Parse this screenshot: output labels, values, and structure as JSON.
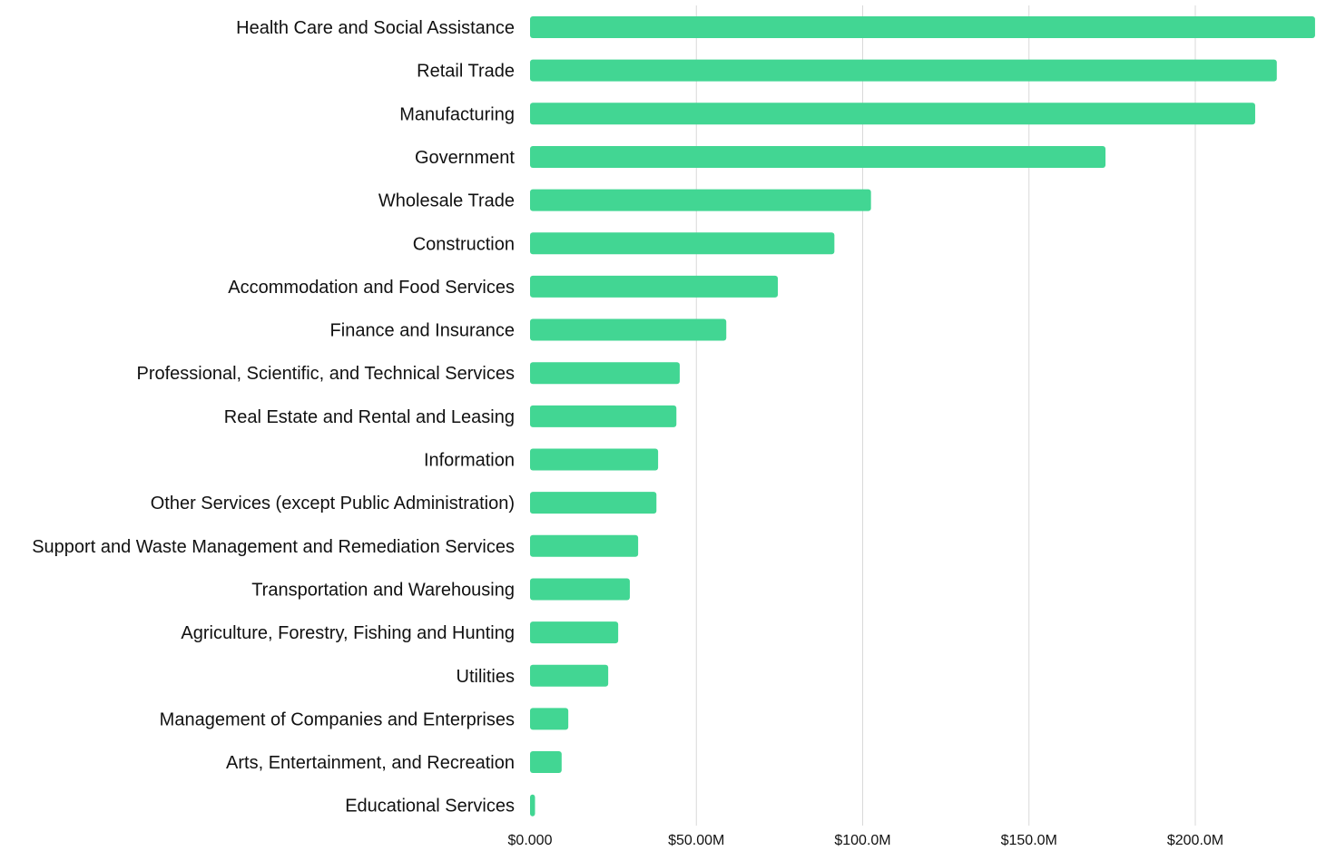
{
  "chart_data": {
    "type": "bar",
    "orientation": "horizontal",
    "title": "",
    "xlabel": "",
    "ylabel": "",
    "categories": [
      "Health Care and Social Assistance",
      "Retail Trade",
      "Manufacturing",
      "Government",
      "Wholesale Trade",
      "Construction",
      "Accommodation and Food Services",
      "Finance and Insurance",
      "Professional, Scientific, and Technical Services",
      "Real Estate and Rental and Leasing",
      "Information",
      "Other Services (except Public Administration)",
      "Support and Waste Management and Remediation Services",
      "Transportation and Warehousing",
      "Agriculture, Forestry, Fishing and Hunting",
      "Utilities",
      "Management of Companies and Enterprises",
      "Arts, Entertainment, and Recreation",
      "Educational Services"
    ],
    "values": [
      236.0,
      224.5,
      218.0,
      173.0,
      102.5,
      91.5,
      74.5,
      59.0,
      45.0,
      44.0,
      38.5,
      38.0,
      32.5,
      30.0,
      26.5,
      23.5,
      11.5,
      9.5,
      1.5
    ],
    "unit": "$M",
    "xlim": [
      0,
      236.0
    ],
    "x_ticks": [
      0,
      50,
      100,
      150,
      200
    ],
    "x_tick_labels": [
      "$0.000",
      "$50.00M",
      "$100.0M",
      "$150.0M",
      "$200.0M"
    ],
    "grid": "vertical",
    "legend": "none",
    "bar_color": "#42d693"
  }
}
